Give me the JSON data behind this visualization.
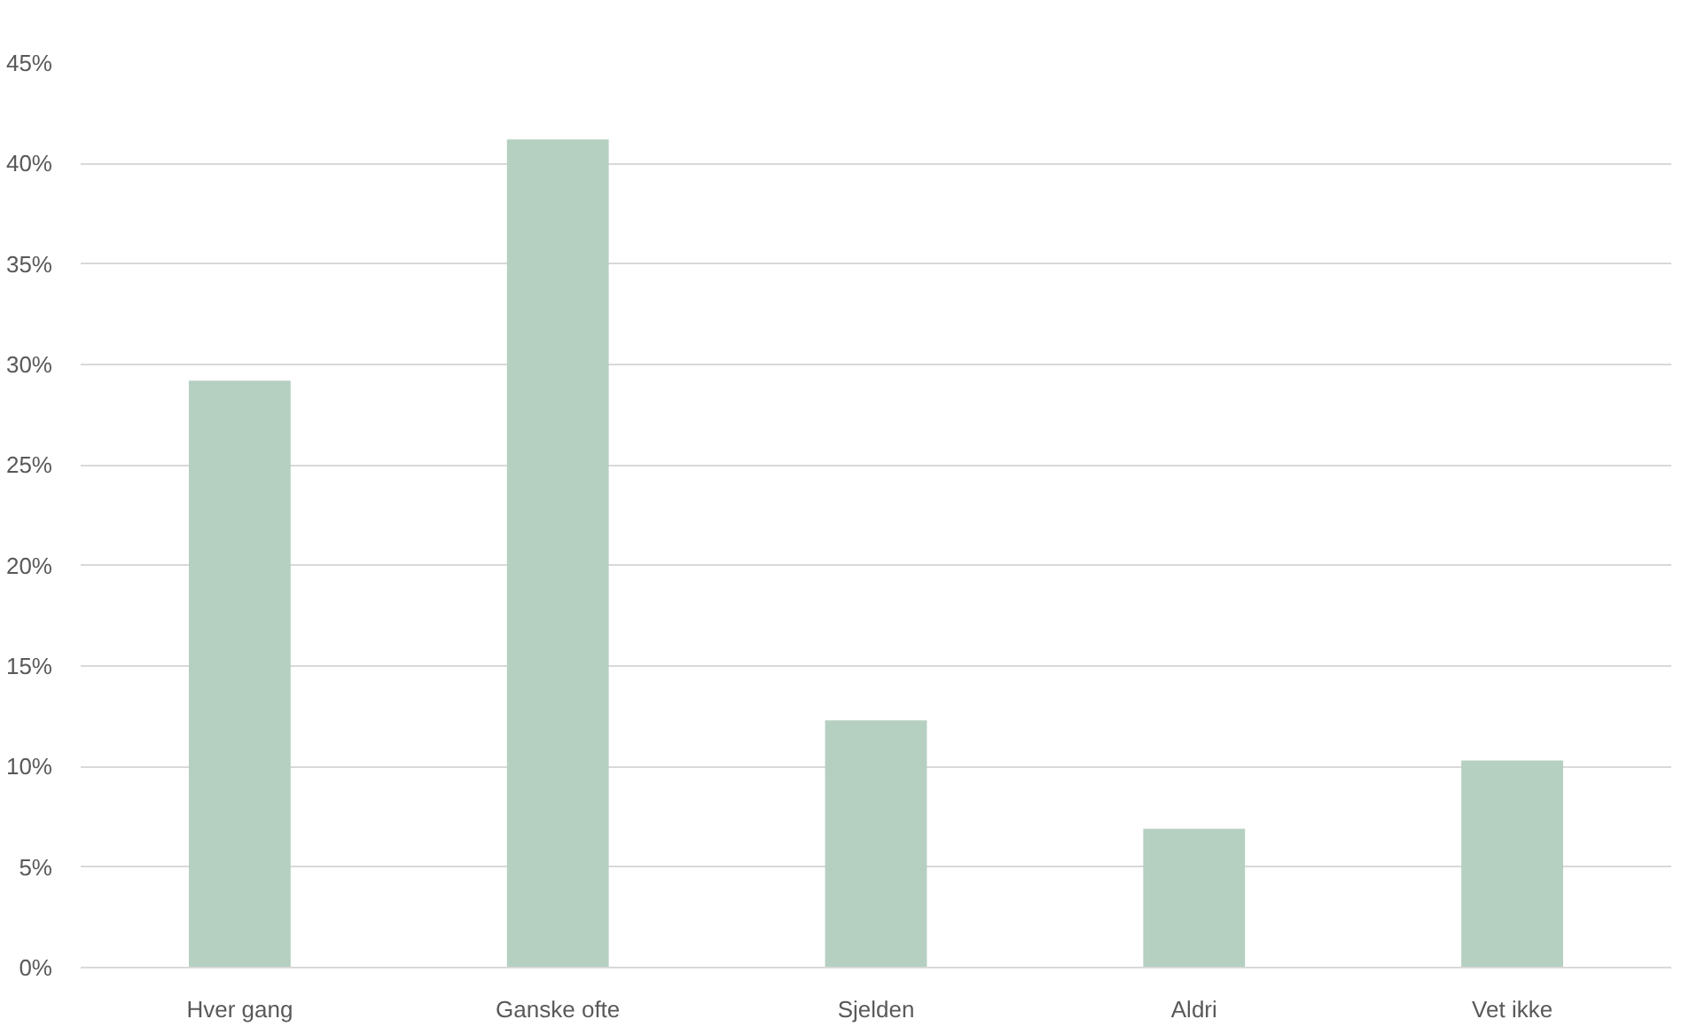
{
  "chart_data": {
    "type": "bar",
    "categories": [
      "Hver gang",
      "Ganske ofte",
      "Sjelden",
      "Aldri",
      "Vet ikke"
    ],
    "values": [
      29.2,
      41.2,
      12.3,
      6.9,
      10.3
    ],
    "color": "#b5cfc0",
    "ylim": [
      0,
      45
    ],
    "yticks": [
      {
        "value": 0,
        "label": "0%"
      },
      {
        "value": 5,
        "label": "5%"
      },
      {
        "value": 10,
        "label": "10%"
      },
      {
        "value": 15,
        "label": "15%"
      },
      {
        "value": 20,
        "label": "20%"
      },
      {
        "value": 25,
        "label": "25%"
      },
      {
        "value": 30,
        "label": "30%"
      },
      {
        "value": 35,
        "label": "35%"
      },
      {
        "value": 40,
        "label": "40%"
      },
      {
        "value": 45,
        "label": "45%"
      }
    ],
    "grid": "y"
  }
}
